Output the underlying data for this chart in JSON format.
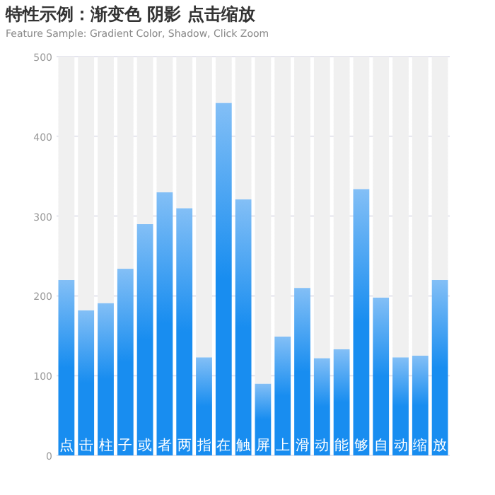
{
  "chart_data": {
    "type": "bar",
    "title": "特性示例：渐变色 阴影 点击缩放",
    "subtitle": "Feature Sample: Gradient Color, Shadow, Click Zoom",
    "categories": [
      "点",
      "击",
      "柱",
      "子",
      "或",
      "者",
      "两",
      "指",
      "在",
      "触",
      "屏",
      "上",
      "滑",
      "动",
      "能",
      "够",
      "自",
      "动",
      "缩",
      "放"
    ],
    "stacked": true,
    "series": [
      {
        "color": "#188df0",
        "values": [
          220,
          182,
          191,
          234,
          290,
          330,
          310,
          123,
          442,
          321,
          90,
          149,
          210,
          122,
          133,
          334,
          198,
          123,
          125,
          220
        ]
      },
      {
        "color": "#f0f0f0",
        "values": [
          280,
          318,
          309,
          266,
          210,
          170,
          190,
          377,
          58,
          179,
          410,
          351,
          290,
          378,
          367,
          166,
          302,
          377,
          375,
          280
        ]
      }
    ],
    "ylim": [
      0,
      500
    ],
    "yticks": [
      0,
      100,
      200,
      300,
      400,
      500
    ],
    "grid": "y"
  }
}
